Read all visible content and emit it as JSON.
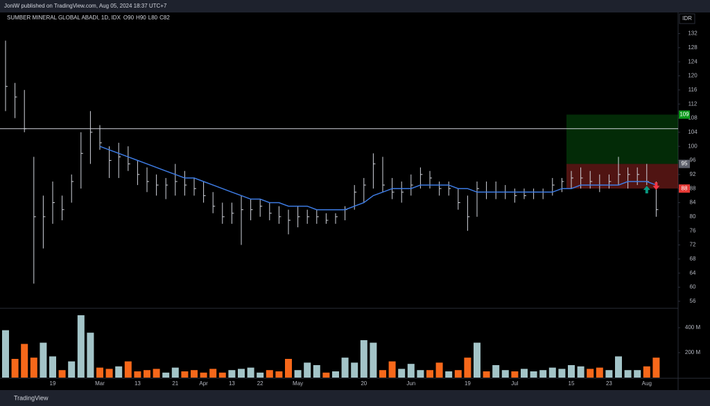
{
  "header": "JoniW published on TradingView.com, Aug 05, 2024 18:37 UTC+7",
  "footer": "TradingView",
  "chart_data": {
    "type": "ohlc",
    "title": "SUMBER MINERAL GLOBAL ABADI, 1D, IDX",
    "ohlc_legend": [
      {
        "label": "O",
        "value": 90
      },
      {
        "label": "H",
        "value": 90
      },
      {
        "label": "L",
        "value": 80
      },
      {
        "label": "C",
        "value": 82
      }
    ],
    "currency": "IDR",
    "categories": [
      null,
      null,
      null,
      null,
      null,
      "19",
      null,
      null,
      null,
      null,
      "Mar",
      null,
      null,
      null,
      "13",
      null,
      null,
      null,
      "21",
      null,
      null,
      "Apr",
      null,
      null,
      "13",
      null,
      null,
      "22",
      null,
      null,
      null,
      "May",
      null,
      null,
      null,
      null,
      null,
      null,
      "20",
      null,
      null,
      null,
      null,
      "Jun",
      null,
      null,
      null,
      null,
      null,
      "19",
      null,
      null,
      null,
      null,
      "Jul",
      null,
      null,
      null,
      null,
      null,
      "15",
      null,
      null,
      null,
      "23",
      null,
      null,
      null,
      "Aug",
      null
    ],
    "high": [
      130,
      118,
      116,
      97,
      86,
      90,
      86,
      92,
      104,
      110,
      106,
      100,
      101,
      100,
      96,
      94,
      92,
      91,
      95,
      93,
      91,
      90,
      87,
      84,
      84,
      86,
      85,
      85,
      84,
      83,
      82,
      83,
      82,
      82,
      81,
      81,
      83,
      89,
      91,
      98,
      97,
      91,
      90,
      92,
      94,
      93,
      90,
      90,
      88,
      86,
      90,
      90,
      90,
      89,
      88,
      88,
      88,
      88,
      91,
      91,
      93,
      94,
      93,
      92,
      92,
      97,
      94,
      94,
      95,
      90
    ],
    "low": [
      110,
      108,
      104,
      61,
      71,
      78,
      79,
      84,
      88,
      95,
      99,
      91,
      91,
      93,
      89,
      87,
      86,
      85,
      86,
      86,
      86,
      84,
      81,
      78,
      78,
      72,
      79,
      80,
      79,
      78,
      75,
      77,
      78,
      78,
      78,
      78,
      79,
      82,
      84,
      88,
      87,
      85,
      84,
      86,
      88,
      88,
      86,
      86,
      82,
      76,
      80,
      85,
      85,
      85,
      84,
      85,
      85,
      85,
      86,
      87,
      88,
      88,
      88,
      87,
      88,
      89,
      88,
      89,
      89,
      80
    ],
    "close": [
      117,
      114,
      105,
      80,
      80,
      84,
      82,
      90,
      98,
      104,
      101,
      96,
      97,
      95,
      92,
      90,
      89,
      89,
      90,
      89,
      88,
      86,
      83,
      80,
      81,
      82,
      82,
      83,
      81,
      80,
      79,
      80,
      80,
      80,
      79,
      80,
      82,
      87,
      89,
      95,
      89,
      87,
      87,
      89,
      92,
      91,
      88,
      88,
      84,
      80,
      88,
      87,
      87,
      87,
      86,
      86,
      87,
      87,
      89,
      90,
      91,
      91,
      90,
      89,
      90,
      92,
      92,
      92,
      90,
      82
    ],
    "bar_color": "#d1d4dc",
    "ma": {
      "color": "#3d7be3",
      "values": [
        null,
        null,
        null,
        null,
        null,
        null,
        null,
        null,
        null,
        null,
        100,
        99,
        98,
        97,
        96,
        95,
        94,
        93,
        92,
        91,
        91,
        90,
        89,
        88,
        87,
        86,
        85,
        85,
        84,
        84,
        83,
        83,
        83,
        82,
        82,
        82,
        82,
        83,
        84,
        86,
        87,
        88,
        88,
        88,
        89,
        89,
        89,
        89,
        88,
        88,
        87,
        87,
        87,
        87,
        87,
        87,
        87,
        87,
        87,
        88,
        88,
        89,
        89,
        89,
        89,
        89,
        90,
        90,
        90,
        89
      ]
    },
    "ylim": [
      54,
      138
    ],
    "yticks": [
      56,
      60,
      64,
      68,
      72,
      76,
      80,
      84,
      88,
      92,
      96,
      100,
      104,
      108,
      112,
      116,
      120,
      124,
      128,
      132
    ],
    "hline": 105,
    "position": {
      "target": 109,
      "entry": 95,
      "stop": 88,
      "target_color": "#0b9a1a",
      "stop_color": "#e53935",
      "entry_color": "#5d606b"
    },
    "volume": {
      "values": [
        380,
        150,
        270,
        160,
        280,
        170,
        60,
        130,
        500,
        360,
        80,
        70,
        90,
        130,
        50,
        60,
        70,
        40,
        80,
        50,
        60,
        40,
        70,
        40,
        60,
        70,
        80,
        40,
        60,
        50,
        150,
        60,
        120,
        100,
        40,
        50,
        160,
        120,
        300,
        280,
        60,
        130,
        70,
        110,
        60,
        60,
        120,
        50,
        60,
        160,
        280,
        50,
        100,
        60,
        50,
        70,
        50,
        60,
        80,
        70,
        100,
        90,
        70,
        80,
        60,
        170,
        60,
        60,
        90,
        160
      ],
      "up_color": "#a3c4c8",
      "down_color": "#f7681a",
      "ylim": [
        0,
        550
      ],
      "yticks": [
        {
          "value": 200,
          "label": "200 M"
        },
        {
          "value": 400,
          "label": "400 M"
        }
      ]
    }
  }
}
